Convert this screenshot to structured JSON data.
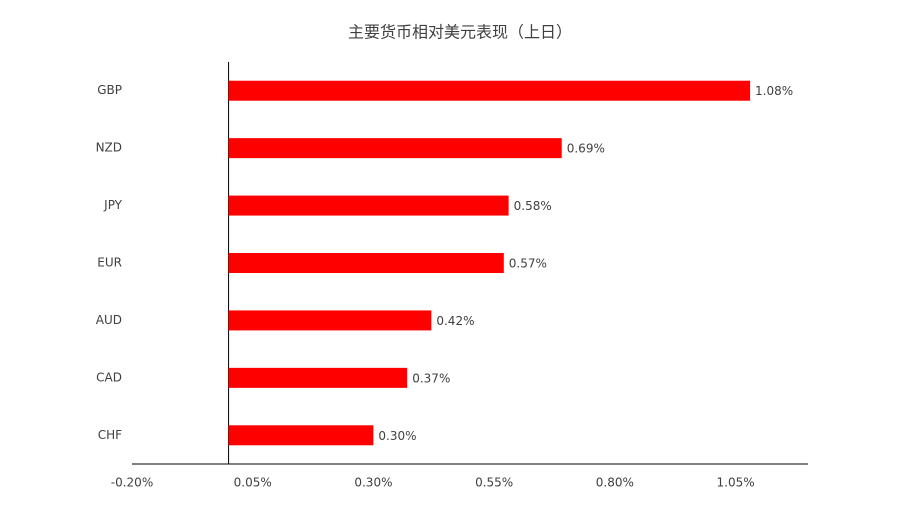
{
  "chart_data": {
    "type": "bar",
    "orientation": "horizontal",
    "title": "主要货币相对美元表现（上日）",
    "categories": [
      "GBP",
      "NZD",
      "JPY",
      "EUR",
      "AUD",
      "CAD",
      "CHF"
    ],
    "values": [
      1.08,
      0.69,
      0.58,
      0.57,
      0.42,
      0.37,
      0.3
    ],
    "value_labels": [
      "1.08%",
      "0.69%",
      "0.58%",
      "0.57%",
      "0.42%",
      "0.37%",
      "0.30%"
    ],
    "color": "#ff0000",
    "xlim": [
      -0.2,
      1.2
    ],
    "xticks": [
      {
        "value": -0.2,
        "label": "-0.20%"
      },
      {
        "value": 0.05,
        "label": "0.05%"
      },
      {
        "value": 0.3,
        "label": "0.30%"
      },
      {
        "value": 0.55,
        "label": "0.55%"
      },
      {
        "value": 0.8,
        "label": "0.80%"
      },
      {
        "value": 1.05,
        "label": "1.05%"
      }
    ],
    "grid": false
  }
}
